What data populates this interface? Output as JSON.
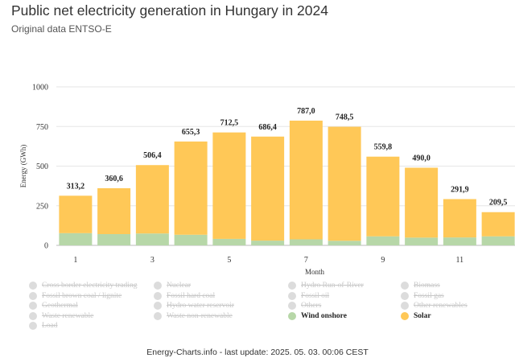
{
  "header": {
    "title": "Public net electricity generation in Hungary in 2024",
    "subtitle": "Original data ENTSO-E"
  },
  "chart_data": {
    "type": "bar",
    "stacked": true,
    "title": "Public net electricity generation in Hungary in 2024",
    "subtitle": "Original data ENTSO-E",
    "xlabel": "Month",
    "ylabel": "Energy (GWh)",
    "ylim": [
      0,
      1000
    ],
    "yticks": [
      0,
      250,
      500,
      750,
      1000
    ],
    "categories": [
      1,
      2,
      3,
      4,
      5,
      6,
      7,
      8,
      9,
      10,
      11,
      12
    ],
    "xtick_labels": [
      "1",
      "3",
      "5",
      "7",
      "9",
      "11"
    ],
    "xtick_positions": [
      1,
      3,
      5,
      7,
      9,
      11
    ],
    "grid": true,
    "series": [
      {
        "name": "Wind onshore",
        "color": "#b7d7a8",
        "values": [
          77,
          71,
          75,
          67,
          41,
          30,
          38,
          29,
          57,
          49,
          50,
          57
        ]
      },
      {
        "name": "Solar",
        "color": "#ffc857",
        "values": [
          236.2,
          289.6,
          431.4,
          588.3,
          671.5,
          656.4,
          749.0,
          719.5,
          502.8,
          441.0,
          241.9,
          152.5
        ]
      }
    ],
    "totals": [
      313.2,
      360.6,
      506.4,
      655.3,
      712.5,
      686.4,
      787.0,
      748.5,
      559.8,
      490.0,
      291.9,
      209.5
    ],
    "data_labels": [
      "313,2",
      "360,6",
      "506,4",
      "655,3",
      "712,5",
      "686,4",
      "787,0",
      "748,5",
      "559,8",
      "490,0",
      "291,9",
      "209,5"
    ]
  },
  "legend": {
    "items": [
      {
        "label": "Cross border electricity trading",
        "active": false
      },
      {
        "label": "Nuclear",
        "active": false
      },
      {
        "label": "Hydro Run-of-River",
        "active": false
      },
      {
        "label": "Biomass",
        "active": false
      },
      {
        "label": "Fossil brown coal / lignite",
        "active": false
      },
      {
        "label": "Fossil hard coal",
        "active": false
      },
      {
        "label": "Fossil oil",
        "active": false
      },
      {
        "label": "Fossil gas",
        "active": false
      },
      {
        "label": "Geothermal",
        "active": false
      },
      {
        "label": "Hydro water reservoir",
        "active": false
      },
      {
        "label": "Others",
        "active": false
      },
      {
        "label": "Other renewables",
        "active": false
      },
      {
        "label": "Waste renewable",
        "active": false
      },
      {
        "label": "Waste non-renewable",
        "active": false
      },
      {
        "label": "Wind onshore",
        "active": true,
        "color": "#b7d7a8"
      },
      {
        "label": "Solar",
        "active": true,
        "color": "#ffc857"
      },
      {
        "label": "Load",
        "active": false
      }
    ]
  },
  "footer": {
    "text": "Energy-Charts.info - last update: 2025. 05. 03. 00:06 CEST"
  }
}
